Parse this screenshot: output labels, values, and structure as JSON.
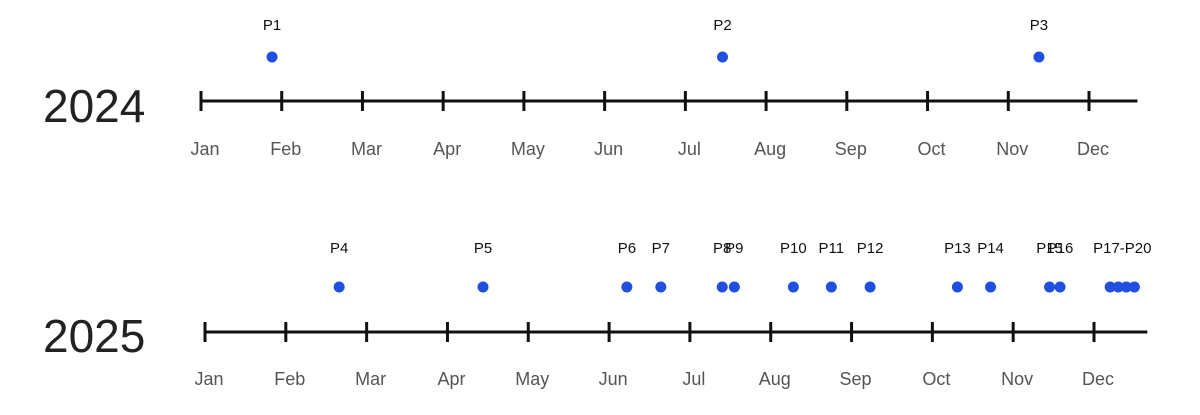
{
  "chart_data": [
    {
      "type": "timeline",
      "title": "2024",
      "color": "#1f4fe0",
      "xlim": [
        0,
        11.6
      ],
      "xticks": [
        {
          "value": 0,
          "label": "Jan"
        },
        {
          "value": 1,
          "label": "Feb"
        },
        {
          "value": 2,
          "label": "Mar"
        },
        {
          "value": 3,
          "label": "Apr"
        },
        {
          "value": 4,
          "label": "May"
        },
        {
          "value": 5,
          "label": "Jun"
        },
        {
          "value": 6,
          "label": "Jul"
        },
        {
          "value": 7,
          "label": "Aug"
        },
        {
          "value": 8,
          "label": "Sep"
        },
        {
          "value": 9,
          "label": "Oct"
        },
        {
          "value": 10,
          "label": "Nov"
        },
        {
          "value": 11,
          "label": "Dec"
        }
      ],
      "groups": [
        {
          "label": "P1",
          "x": [
            0.88
          ]
        },
        {
          "label": "P2",
          "x": [
            6.46
          ]
        },
        {
          "label": "P3",
          "x": [
            10.38
          ]
        }
      ]
    },
    {
      "type": "timeline",
      "title": "2025",
      "color": "#1f4fe0",
      "xlim": [
        0,
        11.66
      ],
      "xticks": [
        {
          "value": 0,
          "label": "Jan"
        },
        {
          "value": 1,
          "label": "Feb"
        },
        {
          "value": 2,
          "label": "Mar"
        },
        {
          "value": 3,
          "label": "Apr"
        },
        {
          "value": 4,
          "label": "May"
        },
        {
          "value": 5,
          "label": "Jun"
        },
        {
          "value": 6,
          "label": "Jul"
        },
        {
          "value": 7,
          "label": "Aug"
        },
        {
          "value": 8,
          "label": "Sep"
        },
        {
          "value": 9,
          "label": "Oct"
        },
        {
          "value": 10,
          "label": "Nov"
        },
        {
          "value": 11,
          "label": "Dec"
        }
      ],
      "groups": [
        {
          "label": "P4",
          "x": [
            1.66
          ]
        },
        {
          "label": "P5",
          "x": [
            3.44
          ]
        },
        {
          "label": "P6",
          "x": [
            5.22
          ]
        },
        {
          "label": "P7",
          "x": [
            5.64
          ]
        },
        {
          "label": "P8",
          "x": [
            6.4
          ]
        },
        {
          "label": "P9",
          "x": [
            6.55
          ]
        },
        {
          "label": "P10",
          "x": [
            7.28
          ]
        },
        {
          "label": "P11",
          "x": [
            7.75
          ]
        },
        {
          "label": "P12",
          "x": [
            8.23
          ]
        },
        {
          "label": "P13",
          "x": [
            9.31
          ]
        },
        {
          "label": "P14",
          "x": [
            9.72
          ]
        },
        {
          "label": "P15",
          "x": [
            10.45
          ]
        },
        {
          "label": "P16",
          "x": [
            10.58
          ]
        },
        {
          "label": "P17-P20",
          "x": [
            11.2,
            11.3,
            11.4,
            11.5
          ]
        }
      ]
    }
  ]
}
